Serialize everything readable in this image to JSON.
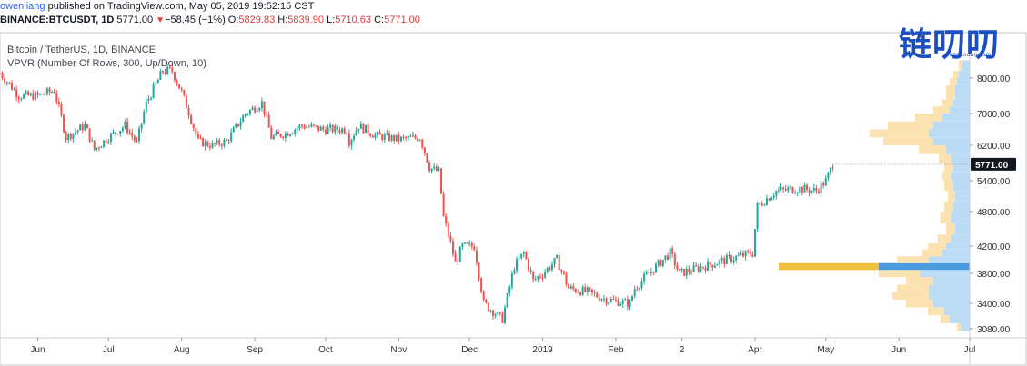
{
  "header": {
    "author": "owenliang",
    "published": " published on TradingView.com, May 05, 2019 19:52:15 CST",
    "symbol_line": "BINANCE:BTCUSDT, 1D",
    "last_value": "5771.00",
    "change_marker": "▼",
    "change": "−58.45 (−1%)",
    "o_label": "O:",
    "o_value": "5829.83",
    "h_label": "H:",
    "h_value": "5839.90",
    "l_label": "L:",
    "l_value": "5710.63",
    "c_label": "C:",
    "c_value": "5771.00"
  },
  "watermark": {
    "text": "链叨叨",
    "sub": "liandaodao.com"
  },
  "legend": {
    "series": "Bitcoin / TetherUS, 1D, BINANCE",
    "indicator": "VPVR (Number Of Rows, 300, Up/Down, 10)"
  },
  "price_badge": "5771.00",
  "colors": {
    "up": "#26a69a",
    "down": "#ef5350",
    "vp_up": "#bcdcf5",
    "vp_down": "#fbe2b0",
    "poc_up": "#4a9be0",
    "poc_down": "#f0c040",
    "axis_text": "#333333",
    "badge_bg": "#131722"
  },
  "chart_data": {
    "type": "candlestick",
    "title": "Bitcoin / TetherUS, 1D, BINANCE",
    "y_ticks": [
      "8000.00",
      "7000.00",
      "6200.00",
      "5400.00",
      "4800.00",
      "4200.00",
      "3800.00",
      "3400.00",
      "3080.00"
    ],
    "y_tick_values": [
      8000,
      7000,
      6200,
      5400,
      4800,
      4200,
      3800,
      3400,
      3080
    ],
    "ylim": [
      2950,
      9200
    ],
    "x_ticks": [
      "Jun",
      "Jul",
      "Aug",
      "Sep",
      "Oct",
      "Nov",
      "Dec",
      "2019",
      "Feb",
      "2",
      "Apr",
      "May",
      "Jun",
      "Jul"
    ],
    "x_tick_dates": [
      "2018-06-01",
      "2018-07-01",
      "2018-08-01",
      "2018-09-01",
      "2018-10-01",
      "2018-11-01",
      "2018-12-01",
      "2019-01-01",
      "2019-02-01",
      "2019-03-01",
      "2019-04-01",
      "2019-05-01",
      "2019-06-01",
      "2019-07-01"
    ],
    "xlim": [
      "2018-05-16",
      "2019-07-01"
    ],
    "series": [
      {
        "name": "Bitcoin / TetherUS, 1D, BINANCE",
        "points": [
          [
            "2018-05-16",
            8150
          ],
          [
            "2018-05-24",
            7500
          ],
          [
            "2018-06-01",
            7500
          ],
          [
            "2018-06-08",
            7650
          ],
          [
            "2018-06-13",
            6400
          ],
          [
            "2018-06-21",
            6700
          ],
          [
            "2018-06-25",
            6100
          ],
          [
            "2018-07-01",
            6400
          ],
          [
            "2018-07-08",
            6700
          ],
          [
            "2018-07-13",
            6250
          ],
          [
            "2018-07-17",
            7300
          ],
          [
            "2018-07-24",
            8200
          ],
          [
            "2018-07-28",
            8200
          ],
          [
            "2018-08-01",
            7600
          ],
          [
            "2018-08-08",
            6300
          ],
          [
            "2018-08-14",
            6200
          ],
          [
            "2018-08-20",
            6300
          ],
          [
            "2018-08-28",
            7000
          ],
          [
            "2018-09-04",
            7300
          ],
          [
            "2018-09-08",
            6400
          ],
          [
            "2018-09-14",
            6500
          ],
          [
            "2018-09-21",
            6700
          ],
          [
            "2018-09-30",
            6600
          ],
          [
            "2018-10-10",
            6600
          ],
          [
            "2018-10-11",
            6300
          ],
          [
            "2018-10-15",
            6700
          ],
          [
            "2018-10-22",
            6450
          ],
          [
            "2018-11-01",
            6350
          ],
          [
            "2018-11-10",
            6400
          ],
          [
            "2018-11-14",
            5700
          ],
          [
            "2018-11-18",
            5600
          ],
          [
            "2018-11-20",
            4700
          ],
          [
            "2018-11-25",
            3950
          ],
          [
            "2018-11-28",
            4200
          ],
          [
            "2018-12-03",
            4200
          ],
          [
            "2018-12-07",
            3400
          ],
          [
            "2018-12-15",
            3200
          ],
          [
            "2018-12-20",
            3900
          ],
          [
            "2018-12-24",
            4100
          ],
          [
            "2018-12-28",
            3700
          ],
          [
            "2019-01-01",
            3800
          ],
          [
            "2019-01-07",
            4000
          ],
          [
            "2019-01-12",
            3600
          ],
          [
            "2019-01-20",
            3550
          ],
          [
            "2019-01-28",
            3450
          ],
          [
            "2019-02-07",
            3400
          ],
          [
            "2019-02-09",
            3600
          ],
          [
            "2019-02-18",
            3900
          ],
          [
            "2019-02-24",
            4100
          ],
          [
            "2019-02-28",
            3800
          ],
          [
            "2019-03-10",
            3900
          ],
          [
            "2019-03-20",
            4000
          ],
          [
            "2019-03-31",
            4100
          ],
          [
            "2019-04-02",
            4900
          ],
          [
            "2019-04-10",
            5200
          ],
          [
            "2019-04-20",
            5250
          ],
          [
            "2019-04-27",
            5200
          ],
          [
            "2019-05-01",
            5400
          ],
          [
            "2019-05-04",
            5771
          ]
        ]
      }
    ],
    "current_price": 5771,
    "volume_profile": [
      {
        "low": 3050,
        "high": 3150,
        "up": 10,
        "down": 4
      },
      {
        "low": 3150,
        "high": 3250,
        "up": 22,
        "down": 10
      },
      {
        "low": 3250,
        "high": 3350,
        "up": 28,
        "down": 18
      },
      {
        "low": 3350,
        "high": 3450,
        "up": 40,
        "down": 30
      },
      {
        "low": 3450,
        "high": 3550,
        "up": 45,
        "down": 40
      },
      {
        "low": 3550,
        "high": 3650,
        "up": 45,
        "down": 35
      },
      {
        "low": 3650,
        "high": 3750,
        "up": 40,
        "down": 30
      },
      {
        "low": 3750,
        "high": 3850,
        "up": 55,
        "down": 45
      },
      {
        "low": 3850,
        "high": 3950,
        "up": 100,
        "down": 110
      },
      {
        "low": 3950,
        "high": 4050,
        "up": 45,
        "down": 35
      },
      {
        "low": 4050,
        "high": 4150,
        "up": 30,
        "down": 22
      },
      {
        "low": 4150,
        "high": 4250,
        "up": 26,
        "down": 20
      },
      {
        "low": 4250,
        "high": 4400,
        "up": 20,
        "down": 15
      },
      {
        "low": 4400,
        "high": 4600,
        "up": 16,
        "down": 10
      },
      {
        "low": 4600,
        "high": 4800,
        "up": 20,
        "down": 12
      },
      {
        "low": 4800,
        "high": 5000,
        "up": 18,
        "down": 10
      },
      {
        "low": 5000,
        "high": 5200,
        "up": 16,
        "down": 8
      },
      {
        "low": 5200,
        "high": 5400,
        "up": 18,
        "down": 10
      },
      {
        "low": 5400,
        "high": 5600,
        "up": 20,
        "down": 10
      },
      {
        "low": 5600,
        "high": 5800,
        "up": 18,
        "down": 10
      },
      {
        "low": 5800,
        "high": 6000,
        "up": 20,
        "down": 14
      },
      {
        "low": 6000,
        "high": 6200,
        "up": 26,
        "down": 30
      },
      {
        "low": 6200,
        "high": 6400,
        "up": 40,
        "down": 55
      },
      {
        "low": 6400,
        "high": 6600,
        "up": 45,
        "down": 65
      },
      {
        "low": 6600,
        "high": 6800,
        "up": 40,
        "down": 50
      },
      {
        "low": 6800,
        "high": 7000,
        "up": 30,
        "down": 30
      },
      {
        "low": 7000,
        "high": 7200,
        "up": 22,
        "down": 18
      },
      {
        "low": 7200,
        "high": 7400,
        "up": 18,
        "down": 12
      },
      {
        "low": 7400,
        "high": 7600,
        "up": 16,
        "down": 10
      },
      {
        "low": 7600,
        "high": 7800,
        "up": 16,
        "down": 10
      },
      {
        "low": 7800,
        "high": 8000,
        "up": 14,
        "down": 8
      },
      {
        "low": 8000,
        "high": 8200,
        "up": 12,
        "down": 6
      },
      {
        "low": 8200,
        "high": 8500,
        "up": 8,
        "down": 4
      }
    ]
  }
}
